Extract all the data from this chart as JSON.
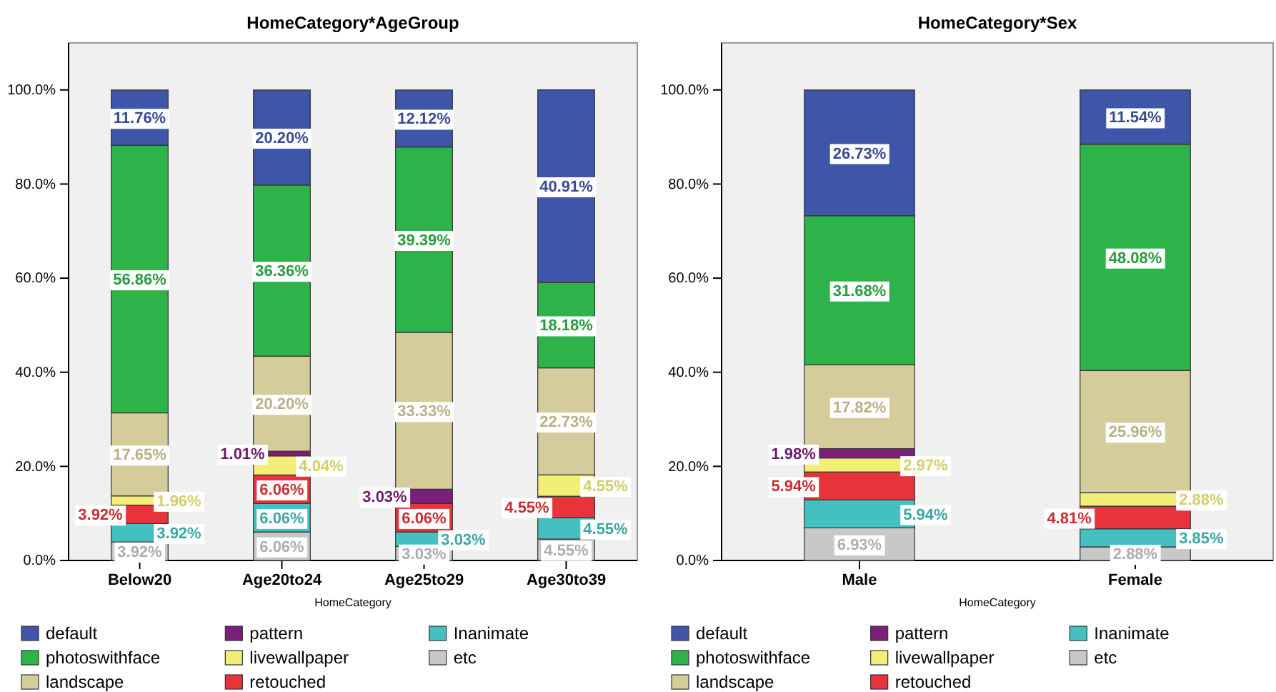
{
  "chart_data": [
    {
      "type": "bar",
      "title": "HomeCategory*AgeGroup",
      "xlabel": "HomeCategory",
      "stacked": true,
      "legend": "bottom",
      "categories": [
        "Below20",
        "Age20to24",
        "Age25to29",
        "Age30to39"
      ],
      "ylim": [
        0,
        110
      ],
      "yticks": [
        {
          "value": 0,
          "label": "0.0%"
        },
        {
          "value": 20,
          "label": "20.0%"
        },
        {
          "value": 40,
          "label": "40.0%"
        },
        {
          "value": 60,
          "label": "60.0%"
        },
        {
          "value": 80,
          "label": "80.0%"
        },
        {
          "value": 100,
          "label": "100.0%"
        }
      ],
      "series": [
        {
          "name": "etc",
          "color": "#c8c8c8",
          "values": [
            3.92,
            6.06,
            3.03,
            4.55
          ],
          "value_labels": [
            "3.92%",
            "6.06%",
            "3.03%",
            "4.55%"
          ]
        },
        {
          "name": "Inanimate",
          "color": "#45c0c0",
          "values": [
            3.92,
            6.06,
            3.03,
            4.55
          ],
          "value_labels": [
            "3.92%",
            "6.06%",
            "3.03%",
            "4.55%"
          ]
        },
        {
          "name": "retouched",
          "color": "#e8333a",
          "values": [
            3.92,
            6.06,
            6.06,
            4.55
          ],
          "value_labels": [
            "3.92%",
            "6.06%",
            "6.06%",
            "4.55%"
          ]
        },
        {
          "name": "livewallpaper",
          "color": "#f3ee78",
          "values": [
            1.96,
            4.04,
            0,
            4.55
          ],
          "value_labels": [
            "1.96%",
            "4.04%",
            null,
            "4.55%"
          ]
        },
        {
          "name": "pattern",
          "color": "#7b1f7b",
          "values": [
            0,
            1.01,
            3.03,
            0
          ],
          "value_labels": [
            null,
            "1.01%",
            "3.03%",
            null
          ]
        },
        {
          "name": "landscape",
          "color": "#d4cc9a",
          "values": [
            17.65,
            20.2,
            33.33,
            22.73
          ],
          "value_labels": [
            "17.65%",
            "20.20%",
            "33.33%",
            "22.73%"
          ]
        },
        {
          "name": "photoswithface",
          "color": "#2db34a",
          "values": [
            56.86,
            36.36,
            39.39,
            18.18
          ],
          "value_labels": [
            "56.86%",
            "36.36%",
            "39.39%",
            "18.18%"
          ]
        },
        {
          "name": "default",
          "color": "#3f55a8",
          "values": [
            11.76,
            20.2,
            12.12,
            40.91
          ],
          "value_labels": [
            "11.76%",
            "20.20%",
            "12.12%",
            "40.91%"
          ]
        }
      ]
    },
    {
      "type": "bar",
      "title": "HomeCategory*Sex",
      "xlabel": "HomeCategory",
      "stacked": true,
      "legend": "bottom",
      "categories": [
        "Male",
        "Female"
      ],
      "ylim": [
        0,
        110
      ],
      "yticks": [
        {
          "value": 0,
          "label": "0.0%"
        },
        {
          "value": 20,
          "label": "20.0%"
        },
        {
          "value": 40,
          "label": "40.0%"
        },
        {
          "value": 60,
          "label": "60.0%"
        },
        {
          "value": 80,
          "label": "80.0%"
        },
        {
          "value": 100,
          "label": "100.0%"
        }
      ],
      "series": [
        {
          "name": "etc",
          "color": "#c8c8c8",
          "values": [
            6.93,
            2.88
          ],
          "value_labels": [
            "6.93%",
            "2.88%"
          ]
        },
        {
          "name": "Inanimate",
          "color": "#45c0c0",
          "values": [
            5.94,
            3.85
          ],
          "value_labels": [
            "5.94%",
            "3.85%"
          ]
        },
        {
          "name": "retouched",
          "color": "#e8333a",
          "values": [
            5.94,
            4.81
          ],
          "value_labels": [
            "5.94%",
            "4.81%"
          ]
        },
        {
          "name": "livewallpaper",
          "color": "#f3ee78",
          "values": [
            2.97,
            2.88
          ],
          "value_labels": [
            "2.97%",
            "2.88%"
          ]
        },
        {
          "name": "pattern",
          "color": "#7b1f7b",
          "values": [
            1.98,
            0
          ],
          "value_labels": [
            "1.98%",
            null
          ]
        },
        {
          "name": "landscape",
          "color": "#d4cc9a",
          "values": [
            17.82,
            25.96
          ],
          "value_labels": [
            "17.82%",
            "25.96%"
          ]
        },
        {
          "name": "photoswithface",
          "color": "#2db34a",
          "values": [
            31.68,
            48.08
          ],
          "value_labels": [
            "31.68%",
            "48.08%"
          ]
        },
        {
          "name": "default",
          "color": "#3f55a8",
          "values": [
            26.73,
            11.54
          ],
          "value_labels": [
            "26.73%",
            "11.54%"
          ]
        }
      ]
    }
  ]
}
